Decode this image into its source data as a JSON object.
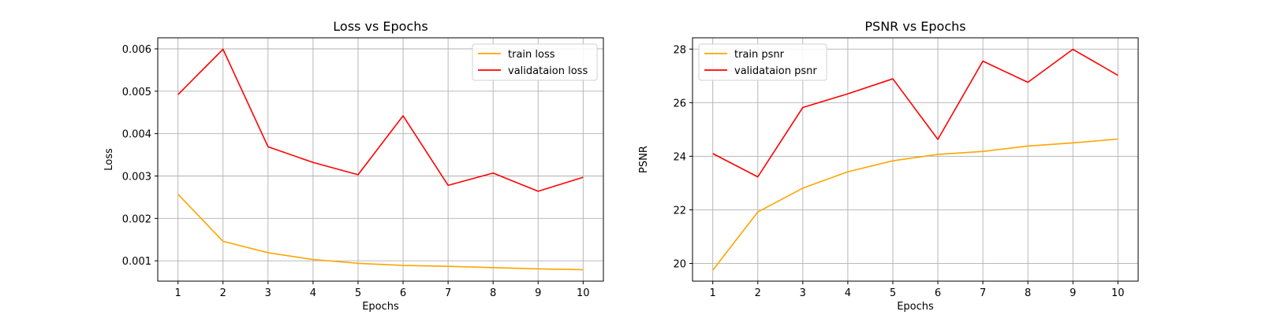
{
  "chart_data": [
    {
      "type": "line",
      "title": "Loss vs Epochs",
      "xlabel": "Epochs",
      "ylabel": "Loss",
      "x": [
        1,
        2,
        3,
        4,
        5,
        6,
        7,
        8,
        9,
        10
      ],
      "xlim": [
        0.55,
        10.45
      ],
      "ylim": [
        0.00052,
        0.00626
      ],
      "xticks": [
        1,
        2,
        3,
        4,
        5,
        6,
        7,
        8,
        9,
        10
      ],
      "yticks": [
        0.001,
        0.002,
        0.003,
        0.004,
        0.005,
        0.006
      ],
      "ytick_labels": [
        "0.001",
        "0.002",
        "0.003",
        "0.004",
        "0.005",
        "0.006"
      ],
      "grid": true,
      "legend_position": "top-right",
      "series": [
        {
          "name": "train loss",
          "color": "#ffa500",
          "values": [
            0.00257,
            0.00146,
            0.00119,
            0.00103,
            0.00094,
            0.00089,
            0.00087,
            0.00084,
            0.00081,
            0.00079
          ]
        },
        {
          "name": "validataion loss",
          "color": "#ff0000",
          "values": [
            0.00492,
            0.00599,
            0.00369,
            0.00332,
            0.00303,
            0.00442,
            0.00278,
            0.00307,
            0.00264,
            0.00297
          ]
        }
      ]
    },
    {
      "type": "line",
      "title": "PSNR vs Epochs",
      "xlabel": "Epochs",
      "ylabel": "PSNR",
      "x": [
        1,
        2,
        3,
        4,
        5,
        6,
        7,
        8,
        9,
        10
      ],
      "xlim": [
        0.55,
        10.45
      ],
      "ylim": [
        19.34,
        28.42
      ],
      "xticks": [
        1,
        2,
        3,
        4,
        5,
        6,
        7,
        8,
        9,
        10
      ],
      "yticks": [
        20,
        22,
        24,
        26,
        28
      ],
      "ytick_labels": [
        "20",
        "22",
        "24",
        "26",
        "28"
      ],
      "grid": true,
      "legend_position": "top-left",
      "series": [
        {
          "name": "train psnr",
          "color": "#ffa500",
          "values": [
            19.75,
            21.92,
            22.81,
            23.42,
            23.83,
            24.07,
            24.18,
            24.38,
            24.5,
            24.64
          ]
        },
        {
          "name": "validataion psnr",
          "color": "#ff0000",
          "values": [
            24.1,
            23.23,
            25.82,
            26.33,
            26.89,
            24.63,
            27.55,
            26.76,
            27.99,
            27.02
          ]
        }
      ]
    }
  ]
}
